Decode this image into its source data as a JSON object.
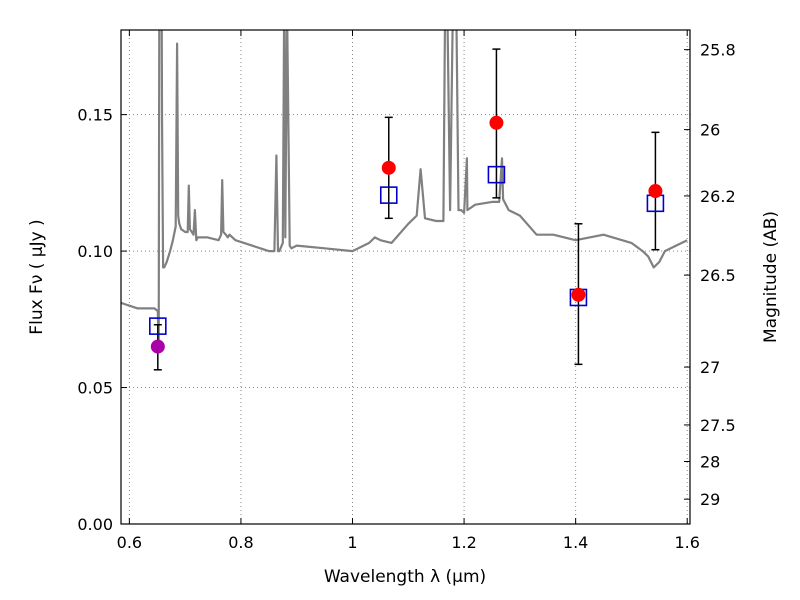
{
  "chart_data": {
    "type": "scatter",
    "xlabel": "Wavelength  λ (μm)",
    "ylabel": "Flux  Fν  ( μJy )",
    "y2label": "Magnitude (AB)",
    "xlim": [
      0.585,
      1.605
    ],
    "ylim": [
      0.0,
      0.181
    ],
    "grid": true,
    "grid_style": "dotted",
    "x_ticks": [
      {
        "value": 0.6,
        "label": "0.6"
      },
      {
        "value": 0.8,
        "label": "0.8"
      },
      {
        "value": 1.0,
        "label": "1"
      },
      {
        "value": 1.2,
        "label": "1.2"
      },
      {
        "value": 1.4,
        "label": "1.4"
      },
      {
        "value": 1.6,
        "label": "1.6"
      }
    ],
    "y_ticks": [
      {
        "value": 0.0,
        "label": "0.00"
      },
      {
        "value": 0.05,
        "label": "0.05"
      },
      {
        "value": 0.1,
        "label": "0.10"
      },
      {
        "value": 0.15,
        "label": "0.15"
      }
    ],
    "y2_ticks": [
      {
        "label": "25.8",
        "flux": 0.1738
      },
      {
        "label": "26",
        "flux": 0.1445
      },
      {
        "label": "26.2",
        "flux": 0.1202
      },
      {
        "label": "26.5",
        "flux": 0.0912
      },
      {
        "label": "27",
        "flux": 0.0575
      },
      {
        "label": "27.5",
        "flux": 0.0363
      },
      {
        "label": "28",
        "flux": 0.0229
      },
      {
        "label": "29",
        "flux": 0.0091
      }
    ],
    "colors": {
      "model_line": "#808080",
      "observed": "#ff0000",
      "observed_first": "#aa00aa",
      "model_box": "#0000cc",
      "errorbar": "#000000",
      "grid": "#888888"
    },
    "model_spectrum": {
      "x": [
        0.585,
        0.6,
        0.615,
        0.63,
        0.645,
        0.651,
        0.6525,
        0.6545,
        0.6565,
        0.6585,
        0.6605,
        0.6625,
        0.667,
        0.673,
        0.678,
        0.683,
        0.6855,
        0.6875,
        0.6895,
        0.693,
        0.7,
        0.7045,
        0.7065,
        0.7085,
        0.715,
        0.7175,
        0.72,
        0.7225,
        0.74,
        0.76,
        0.7645,
        0.7665,
        0.7685,
        0.773,
        0.7765,
        0.7795,
        0.79,
        0.82,
        0.85,
        0.86,
        0.8635,
        0.8665,
        0.869,
        0.875,
        0.8775,
        0.8795,
        0.8825,
        0.886,
        0.8875,
        0.8905,
        0.9,
        0.95,
        1.0,
        1.03,
        1.04,
        1.05,
        1.07,
        1.1,
        1.115,
        1.122,
        1.13,
        1.15,
        1.163,
        1.166,
        1.17,
        1.175,
        1.18,
        1.186,
        1.19,
        1.195,
        1.2,
        1.205,
        1.206,
        1.22,
        1.25,
        1.263,
        1.268,
        1.27,
        1.28,
        1.3,
        1.33,
        1.36,
        1.4,
        1.45,
        1.5,
        1.52,
        1.53,
        1.54,
        1.55,
        1.56,
        1.58,
        1.6
      ],
      "y": [
        0.081,
        0.08,
        0.079,
        0.079,
        0.079,
        0.078,
        0.065,
        0.29,
        0.29,
        0.15,
        0.094,
        0.094,
        0.096,
        0.1,
        0.104,
        0.109,
        0.176,
        0.113,
        0.11,
        0.108,
        0.107,
        0.107,
        0.124,
        0.108,
        0.106,
        0.115,
        0.104,
        0.105,
        0.105,
        0.104,
        0.106,
        0.126,
        0.107,
        0.106,
        0.105,
        0.106,
        0.104,
        0.102,
        0.1,
        0.1,
        0.135,
        0.1,
        0.1,
        0.103,
        0.191,
        0.105,
        0.191,
        0.129,
        0.102,
        0.101,
        0.102,
        0.101,
        0.1,
        0.103,
        0.105,
        0.104,
        0.103,
        0.11,
        0.113,
        0.13,
        0.112,
        0.111,
        0.111,
        0.19,
        0.19,
        0.115,
        0.19,
        0.19,
        0.115,
        0.115,
        0.114,
        0.134,
        0.115,
        0.117,
        0.118,
        0.118,
        0.134,
        0.119,
        0.115,
        0.113,
        0.106,
        0.106,
        0.104,
        0.106,
        0.103,
        0.1,
        0.098,
        0.094,
        0.096,
        0.1,
        0.102,
        0.104
      ]
    },
    "series": [
      {
        "marker": "filled-circle",
        "points": [
          {
            "x": 0.651,
            "y": 0.065,
            "yerr_low": 0.0565,
            "yerr_high": 0.073,
            "color_key": "observed_first"
          },
          {
            "x": 1.065,
            "y": 0.1305,
            "yerr_low": 0.112,
            "yerr_high": 0.149,
            "color_key": "observed"
          },
          {
            "x": 1.258,
            "y": 0.147,
            "yerr_low": 0.1195,
            "yerr_high": 0.174,
            "color_key": "observed"
          },
          {
            "x": 1.405,
            "y": 0.084,
            "yerr_low": 0.0585,
            "yerr_high": 0.11,
            "color_key": "observed"
          },
          {
            "x": 1.543,
            "y": 0.122,
            "yerr_low": 0.1005,
            "yerr_high": 0.1435,
            "color_key": "observed"
          }
        ]
      },
      {
        "marker": "open-square",
        "points": [
          {
            "x": 0.651,
            "y": 0.0725
          },
          {
            "x": 1.065,
            "y": 0.1205
          },
          {
            "x": 1.258,
            "y": 0.128
          },
          {
            "x": 1.405,
            "y": 0.083
          },
          {
            "x": 1.543,
            "y": 0.1175
          }
        ]
      }
    ]
  }
}
